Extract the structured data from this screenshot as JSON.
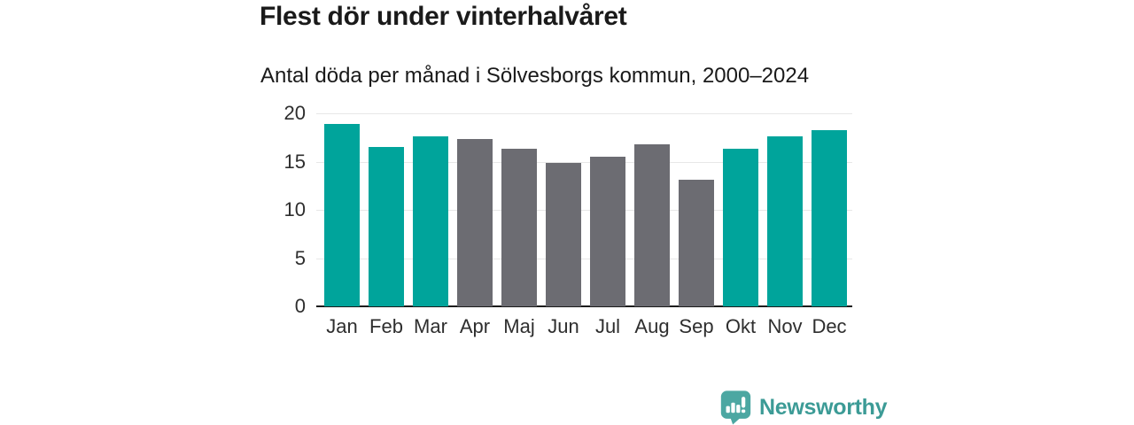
{
  "header": {
    "title": "Flest dör under vinterhalvåret",
    "subtitle": "Antal döda per månad i Sölvesborgs kommun, 2000–2024"
  },
  "chart_data": {
    "type": "bar",
    "title": "Flest dör under vinterhalvåret",
    "subtitle": "Antal döda per månad i Sölvesborgs kommun, 2000–2024",
    "categories": [
      "Jan",
      "Feb",
      "Mar",
      "Apr",
      "Maj",
      "Jun",
      "Jul",
      "Aug",
      "Sep",
      "Okt",
      "Nov",
      "Dec"
    ],
    "values": [
      18.9,
      16.5,
      17.6,
      17.3,
      16.3,
      14.9,
      15.5,
      16.8,
      13.1,
      16.3,
      17.6,
      18.3
    ],
    "winter_highlight": [
      true,
      true,
      true,
      false,
      false,
      false,
      false,
      false,
      false,
      true,
      true,
      true
    ],
    "xlabel": "",
    "ylabel": "",
    "ylim": [
      0,
      20
    ],
    "yticks": [
      0,
      5,
      10,
      15,
      20
    ],
    "grid": true,
    "legend": "none",
    "colors": {
      "winter_bar": "#00a49b",
      "summer_bar": "#6c6c72",
      "gridline": "#e7e7e7",
      "axis_line": "#1c1c1c",
      "tick_text": "#2e2e2e"
    }
  },
  "footer": {
    "brand": "Newsworthy",
    "logo_icon": "bar-chart-speech-bubble-icon",
    "colors": {
      "logo_fill": "#4ca7a2",
      "brand_text": "#3c9b96"
    }
  }
}
